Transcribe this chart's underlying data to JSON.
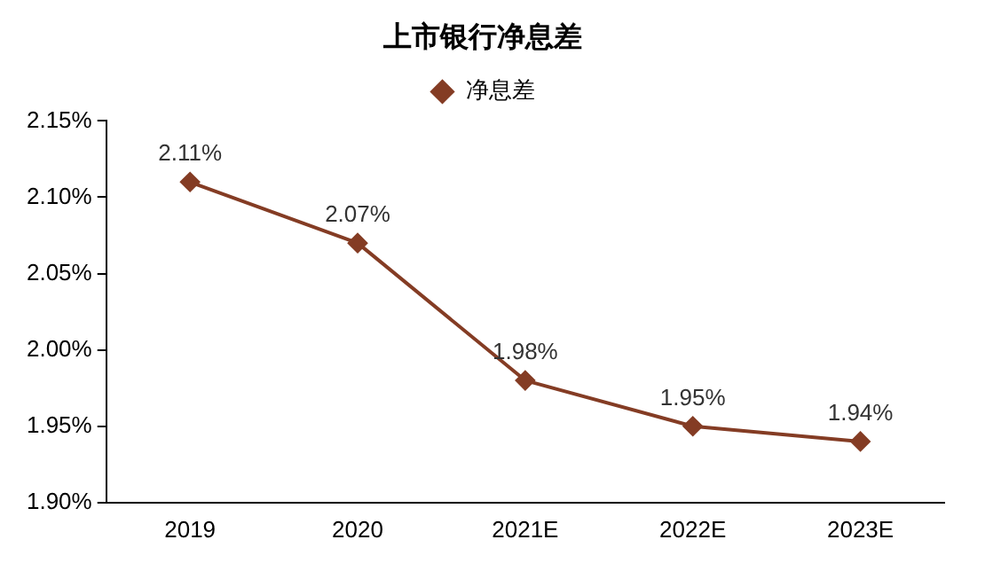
{
  "chart_data": {
    "type": "line",
    "title": "上市银行净息差",
    "categories": [
      "2019",
      "2020",
      "2021E",
      "2022E",
      "2023E"
    ],
    "series": [
      {
        "name": "净息差",
        "color": "#843c24",
        "values": [
          2.11,
          2.07,
          1.98,
          1.95,
          1.94
        ],
        "value_labels": [
          "2.11%",
          "2.07%",
          "1.98%",
          "1.95%",
          "1.94%"
        ]
      }
    ],
    "ylim": [
      1.9,
      2.15
    ],
    "yticks": [
      {
        "value": 1.9,
        "label": "1.90%"
      },
      {
        "value": 1.95,
        "label": "1.95%"
      },
      {
        "value": 2.0,
        "label": "2.00%"
      },
      {
        "value": 2.05,
        "label": "2.05%"
      },
      {
        "value": 2.1,
        "label": "2.10%"
      },
      {
        "value": 2.15,
        "label": "2.15%"
      }
    ],
    "grid": false,
    "legend": "top",
    "marker": "diamond",
    "line_style": "solid"
  }
}
